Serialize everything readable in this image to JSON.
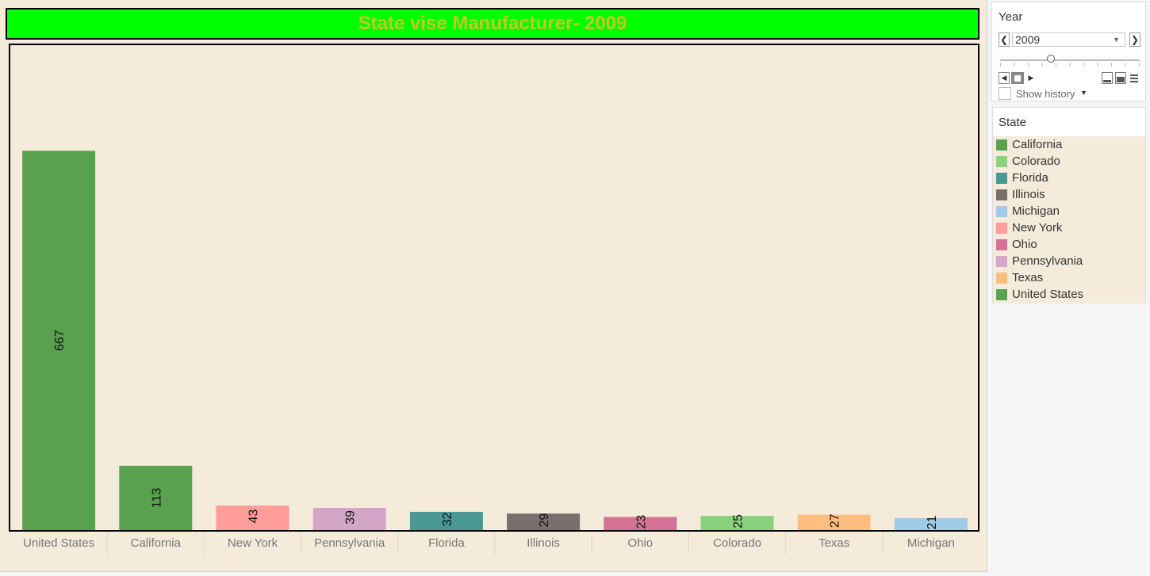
{
  "chart_data": {
    "type": "bar",
    "title": "State vise Manufacturer- 2009",
    "categories": [
      "United States",
      "California",
      "New York",
      "Pennsylvania",
      "Florida",
      "Illinois",
      "Ohio",
      "Colorado",
      "Texas",
      "Michigan"
    ],
    "values": [
      667,
      113,
      43,
      39,
      32,
      29,
      23,
      25,
      27,
      21
    ],
    "bar_colors": [
      "#59a14f",
      "#59a14f",
      "#ff9d9a",
      "#d4a6c8",
      "#499894",
      "#79706e",
      "#d37295",
      "#8cd17d",
      "#ffbe7d",
      "#a0cbe8"
    ],
    "ylim": [
      0,
      850
    ],
    "grid": false,
    "legend": "right"
  },
  "year_filter": {
    "title": "Year",
    "selected": "2009",
    "prev_icon": "chevron-left-icon",
    "next_icon": "chevron-right-icon",
    "show_history_label": "Show history"
  },
  "legend": {
    "title": "State",
    "items": [
      {
        "label": "California",
        "color": "#59a14f"
      },
      {
        "label": "Colorado",
        "color": "#8cd17d"
      },
      {
        "label": "Florida",
        "color": "#499894"
      },
      {
        "label": "Illinois",
        "color": "#79706e"
      },
      {
        "label": "Michigan",
        "color": "#a0cbe8"
      },
      {
        "label": "New York",
        "color": "#ff9d9a"
      },
      {
        "label": "Ohio",
        "color": "#d37295"
      },
      {
        "label": "Pennsylvania",
        "color": "#d4a6c8"
      },
      {
        "label": "Texas",
        "color": "#ffbe7d"
      },
      {
        "label": "United States",
        "color": "#59a14f"
      }
    ]
  }
}
